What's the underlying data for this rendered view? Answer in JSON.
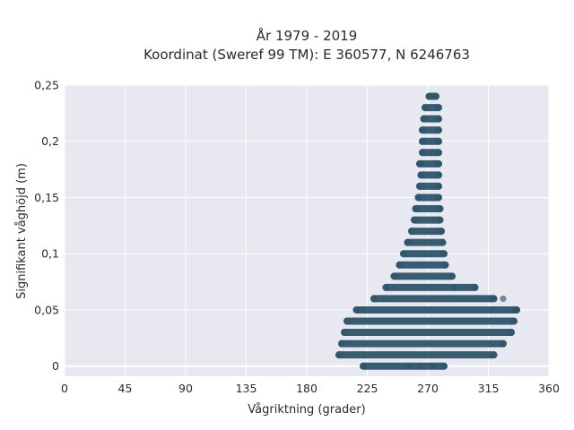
{
  "chart_data": {
    "type": "scatter",
    "title": "År 1979 - 2019",
    "subtitle": "Koordinat (Sweref 99 TM): E 360577, N 6246763",
    "xlabel": "Vågriktning (grader)",
    "ylabel": "Signifikant våghöjd (m)",
    "xlim": [
      0,
      360
    ],
    "ylim": [
      -0.009,
      0.25
    ],
    "xticks": [
      0,
      45,
      90,
      135,
      180,
      225,
      270,
      315,
      360
    ],
    "xtick_labels": [
      "0",
      "45",
      "90",
      "135",
      "180",
      "225",
      "270",
      "315",
      "360"
    ],
    "yticks": [
      0,
      0.05,
      0.1,
      0.15,
      0.2,
      0.25
    ],
    "ytick_labels": [
      "0",
      "0,05",
      "0,1",
      "0,15",
      "0,2",
      "0,25"
    ],
    "grid": true,
    "background": "#e8e8f0",
    "marker_color": "#2e556b",
    "bands": [
      {
        "y": 0.0,
        "x_min": 222,
        "x_max": 282
      },
      {
        "y": 0.01,
        "x_min": 204,
        "x_max": 319
      },
      {
        "y": 0.02,
        "x_min": 206,
        "x_max": 326
      },
      {
        "y": 0.03,
        "x_min": 208,
        "x_max": 332
      },
      {
        "y": 0.04,
        "x_min": 210,
        "x_max": 334
      },
      {
        "y": 0.05,
        "x_min": 217,
        "x_max": 336
      },
      {
        "y": 0.06,
        "x_min": 230,
        "x_max": 319
      },
      {
        "y": 0.07,
        "x_min": 239,
        "x_max": 305
      },
      {
        "y": 0.08,
        "x_min": 245,
        "x_max": 288
      },
      {
        "y": 0.09,
        "x_min": 249,
        "x_max": 283
      },
      {
        "y": 0.1,
        "x_min": 252,
        "x_max": 282
      },
      {
        "y": 0.11,
        "x_min": 255,
        "x_max": 281
      },
      {
        "y": 0.12,
        "x_min": 258,
        "x_max": 280
      },
      {
        "y": 0.13,
        "x_min": 260,
        "x_max": 279
      },
      {
        "y": 0.14,
        "x_min": 261,
        "x_max": 279
      },
      {
        "y": 0.15,
        "x_min": 263,
        "x_max": 278
      },
      {
        "y": 0.16,
        "x_min": 264,
        "x_max": 278
      },
      {
        "y": 0.17,
        "x_min": 265,
        "x_max": 278
      },
      {
        "y": 0.18,
        "x_min": 264,
        "x_max": 278
      },
      {
        "y": 0.19,
        "x_min": 266,
        "x_max": 278
      },
      {
        "y": 0.2,
        "x_min": 266,
        "x_max": 278
      },
      {
        "y": 0.21,
        "x_min": 266,
        "x_max": 278
      },
      {
        "y": 0.22,
        "x_min": 267,
        "x_max": 278
      },
      {
        "y": 0.23,
        "x_min": 268,
        "x_max": 278
      },
      {
        "y": 0.24,
        "x_min": 271,
        "x_max": 276
      }
    ],
    "outliers": [
      {
        "x": 290,
        "y": 0.07
      },
      {
        "x": 304,
        "y": 0.07
      },
      {
        "x": 318,
        "y": 0.06
      },
      {
        "x": 326,
        "y": 0.06
      },
      {
        "x": 334,
        "y": 0.05
      },
      {
        "x": 264,
        "y": 0.18
      },
      {
        "x": 256,
        "y": 0.0
      },
      {
        "x": 264,
        "y": 0.0
      },
      {
        "x": 274,
        "y": 0.0
      }
    ]
  }
}
